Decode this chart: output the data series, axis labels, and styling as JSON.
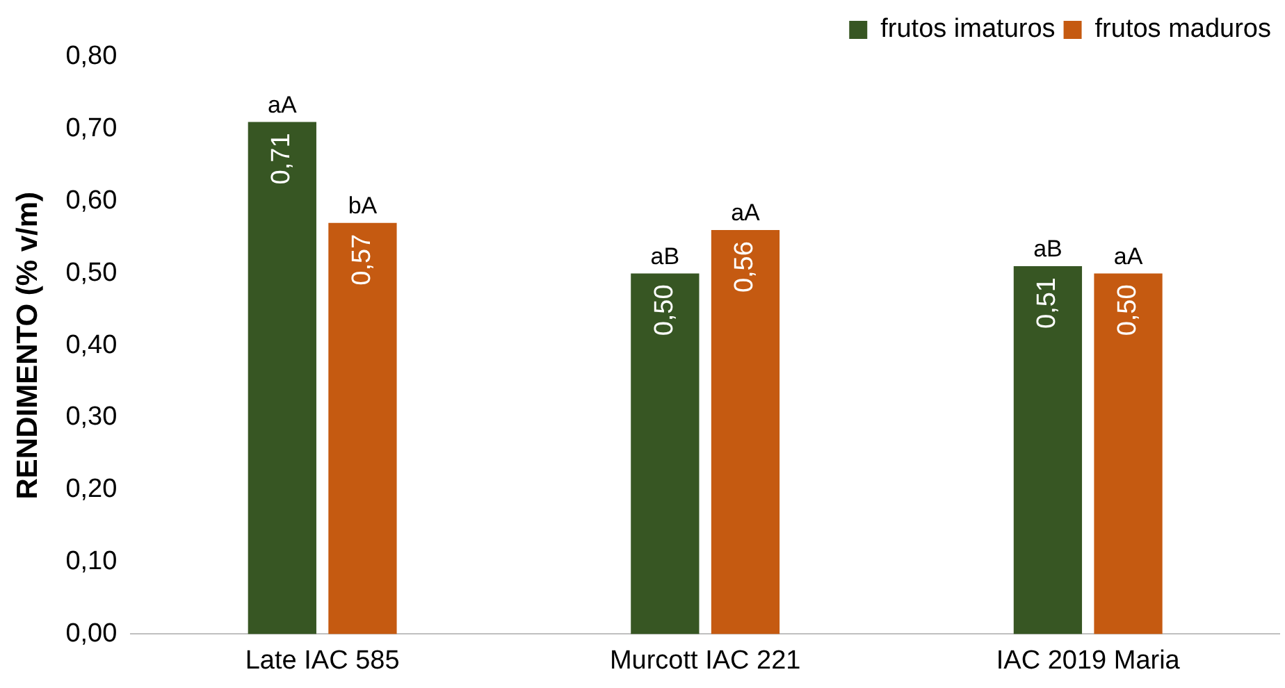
{
  "chart_data": {
    "type": "bar",
    "ylabel": "RENDIMENTO (% v/m)",
    "categories": [
      "Late IAC 585",
      "Murcott IAC 221",
      "IAC 2019 Maria"
    ],
    "series": [
      {
        "name": "frutos imaturos",
        "color": "#375623",
        "values": [
          0.71,
          0.5,
          0.51
        ],
        "value_labels": [
          "0,71",
          "0,50",
          "0,51"
        ]
      },
      {
        "name": "frutos maduros",
        "color": "#c55a11",
        "values": [
          0.57,
          0.56,
          0.5
        ],
        "value_labels": [
          "0,57",
          "0,56",
          "0,50"
        ]
      }
    ],
    "ylim": [
      0,
      0.8
    ],
    "yticks": [
      {
        "value": 0,
        "label": "0,00"
      },
      {
        "value": 0.1,
        "label": "0,10"
      },
      {
        "value": 0.2,
        "label": "0,20"
      },
      {
        "value": 0.3,
        "label": "0,30"
      },
      {
        "value": 0.4,
        "label": "0,40"
      },
      {
        "value": 0.5,
        "label": "0,50"
      },
      {
        "value": 0.6,
        "label": "0,60"
      },
      {
        "value": 0.7,
        "label": "0,70"
      },
      {
        "value": 0.8,
        "label": "0,80"
      }
    ],
    "grid": false,
    "legend": "top right",
    "annotations": [
      {
        "text": "aA",
        "x": "Late IAC 585",
        "y": 0.71
      },
      {
        "text": "bA",
        "x": "Late IAC 585",
        "y": 0.57
      },
      {
        "text": "aB",
        "x": "Murcott IAC 221",
        "y": 0.5
      },
      {
        "text": "aA",
        "x": "Murcott IAC 221",
        "y": 0.56
      },
      {
        "text": "aB",
        "x": "IAC 2019 Maria",
        "y": 0.51
      },
      {
        "text": "aA",
        "x": "IAC 2019 Maria",
        "y": 0.5
      }
    ]
  }
}
